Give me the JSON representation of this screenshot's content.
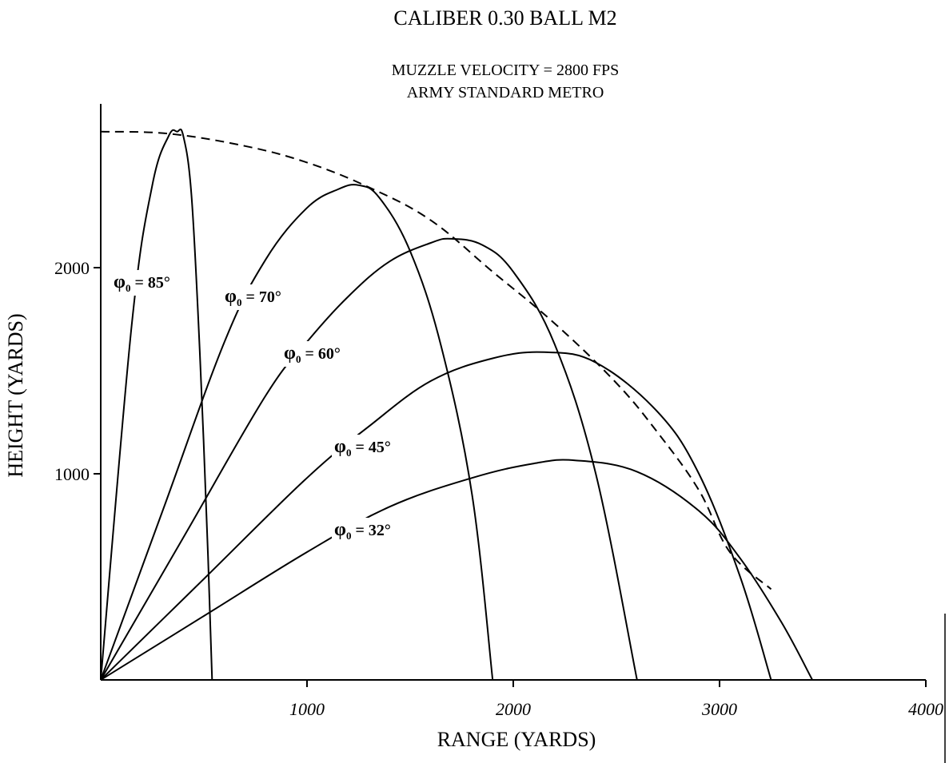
{
  "chart_data": {
    "type": "line",
    "title": "CALIBER 0.30 BALL M2",
    "subtitle_lines": [
      "MUZZLE VELOCITY = 2800 FPS",
      "ARMY STANDARD METRO"
    ],
    "xlabel": "RANGE (YARDS)",
    "ylabel": "HEIGHT (YARDS)",
    "xlim": [
      0,
      4000
    ],
    "ylim": [
      0,
      2700
    ],
    "x_ticks": [
      "1000",
      "2000",
      "3000",
      "4000"
    ],
    "y_ticks": [
      "1000",
      "2000"
    ],
    "grid": false,
    "line_color": "#000000",
    "series": [
      {
        "label_sym": "φ",
        "label_sub": "0",
        "label_rest": " = 85°",
        "x": [
          0,
          150,
          250,
          330,
          370,
          400,
          440,
          480,
          520,
          540
        ],
        "y": [
          0,
          1720,
          2400,
          2640,
          2660,
          2640,
          2350,
          1600,
          600,
          0
        ]
      },
      {
        "label_sym": "φ",
        "label_sub": "0",
        "label_rest": " = 70°",
        "x": [
          0,
          300,
          600,
          800,
          1000,
          1150,
          1250,
          1350,
          1500,
          1650,
          1800,
          1900
        ],
        "y": [
          0,
          820,
          1640,
          2040,
          2290,
          2380,
          2400,
          2340,
          2080,
          1620,
          900,
          0
        ]
      },
      {
        "label_sym": "φ",
        "label_sub": "0",
        "label_rest": " = 60°",
        "x": [
          0,
          400,
          800,
          1000,
          1200,
          1400,
          1600,
          1700,
          1850,
          2000,
          2200,
          2400,
          2600
        ],
        "y": [
          0,
          690,
          1380,
          1640,
          1860,
          2030,
          2120,
          2140,
          2110,
          1980,
          1630,
          1000,
          0
        ]
      },
      {
        "label_sym": "φ",
        "label_sub": "0",
        "label_rest": " = 45°",
        "x": [
          0,
          500,
          1000,
          1300,
          1600,
          1900,
          2150,
          2400,
          2700,
          2900,
          3100,
          3250
        ],
        "y": [
          0,
          490,
          980,
          1230,
          1450,
          1560,
          1590,
          1540,
          1300,
          1000,
          500,
          0
        ]
      },
      {
        "label_sym": "φ",
        "label_sub": "0",
        "label_rest": " = 32°",
        "x": [
          0,
          500,
          1000,
          1400,
          1800,
          2100,
          2300,
          2600,
          2900,
          3100,
          3300,
          3450
        ],
        "y": [
          0,
          310,
          620,
          840,
          980,
          1050,
          1065,
          1010,
          820,
          590,
          280,
          0
        ]
      }
    ],
    "envelope": {
      "style": "dashed",
      "x": [
        0,
        330,
        700,
        1000,
        1300,
        1600,
        1900,
        2200,
        2500,
        2700,
        2900,
        3050,
        3250
      ],
      "y": [
        2660,
        2650,
        2590,
        2510,
        2390,
        2230,
        1980,
        1730,
        1440,
        1200,
        920,
        620,
        440
      ]
    }
  }
}
